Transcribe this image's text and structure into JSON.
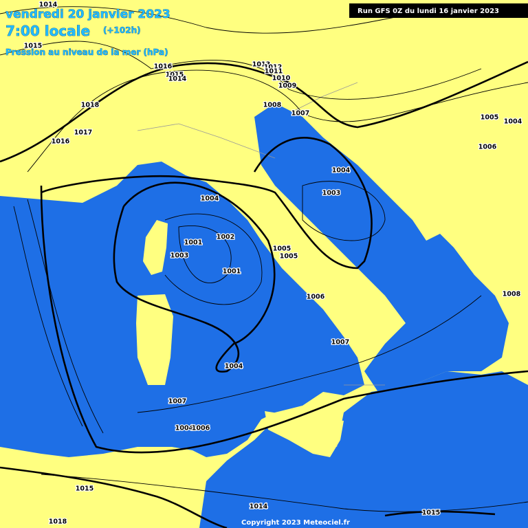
{
  "header": {
    "date": "vendredi 20 janvier 2023",
    "time": "7:00 locale",
    "lead": "(+102h)",
    "subtitle": "Pression au niveau de la mer (hPa)",
    "run": "Run GFS 0Z du lundi 16 janvier 2023"
  },
  "isobar_labels": [
    "1014",
    "1015",
    "1016",
    "1015",
    "1014",
    "1018",
    "1017",
    "1016",
    "1013",
    "1012",
    "1011",
    "1010",
    "1009",
    "1008",
    "1007",
    "1005",
    "1004",
    "1006",
    "1004",
    "1003",
    "1004",
    "1001",
    "1002",
    "1003",
    "1005",
    "1005",
    "1001",
    "1006",
    "1008",
    "1007",
    "1004",
    "1007",
    "1004",
    "1006",
    "1015",
    "1014",
    "1015",
    "1018"
  ],
  "footer": {
    "copyright": "Copyright 2023 Meteociel.fr"
  }
}
